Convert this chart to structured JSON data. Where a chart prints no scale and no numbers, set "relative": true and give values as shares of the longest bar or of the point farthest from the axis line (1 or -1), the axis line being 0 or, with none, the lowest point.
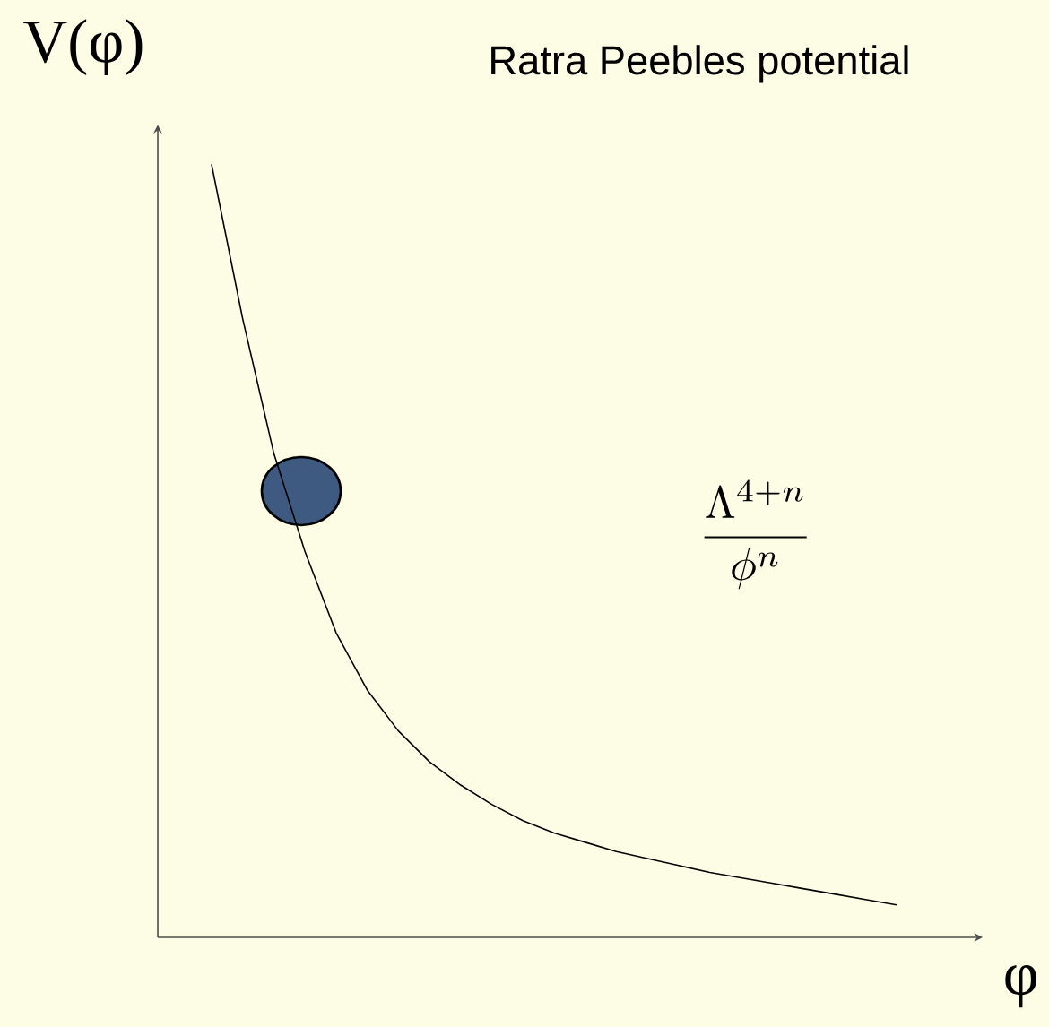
{
  "chart_data": {
    "type": "line",
    "title": "Ratra Peebles potential",
    "xlabel": "φ",
    "ylabel": "V(φ)",
    "relative": true,
    "annotations": [
      "\\frac{\\Lambda^{4+n}}{\\phi^{n}}"
    ],
    "categories": [
      null,
      null,
      null,
      null,
      null,
      null,
      null,
      null,
      null,
      null,
      null,
      null,
      null,
      null,
      null,
      null,
      null,
      null,
      null,
      null,
      null,
      null,
      null
    ],
    "series": [
      {
        "color": "#000000",
        "values": [
          1,
          0.8,
          0.626,
          0.499,
          0.394,
          0.32,
          0.267,
          0.227,
          0.197,
          0.172,
          0.151,
          0.135,
          0.123,
          0.111,
          0.102,
          0.093,
          0.084,
          0.077,
          0.07,
          0.063,
          0.056,
          0.049,
          0.042
        ]
      }
    ]
  }
}
